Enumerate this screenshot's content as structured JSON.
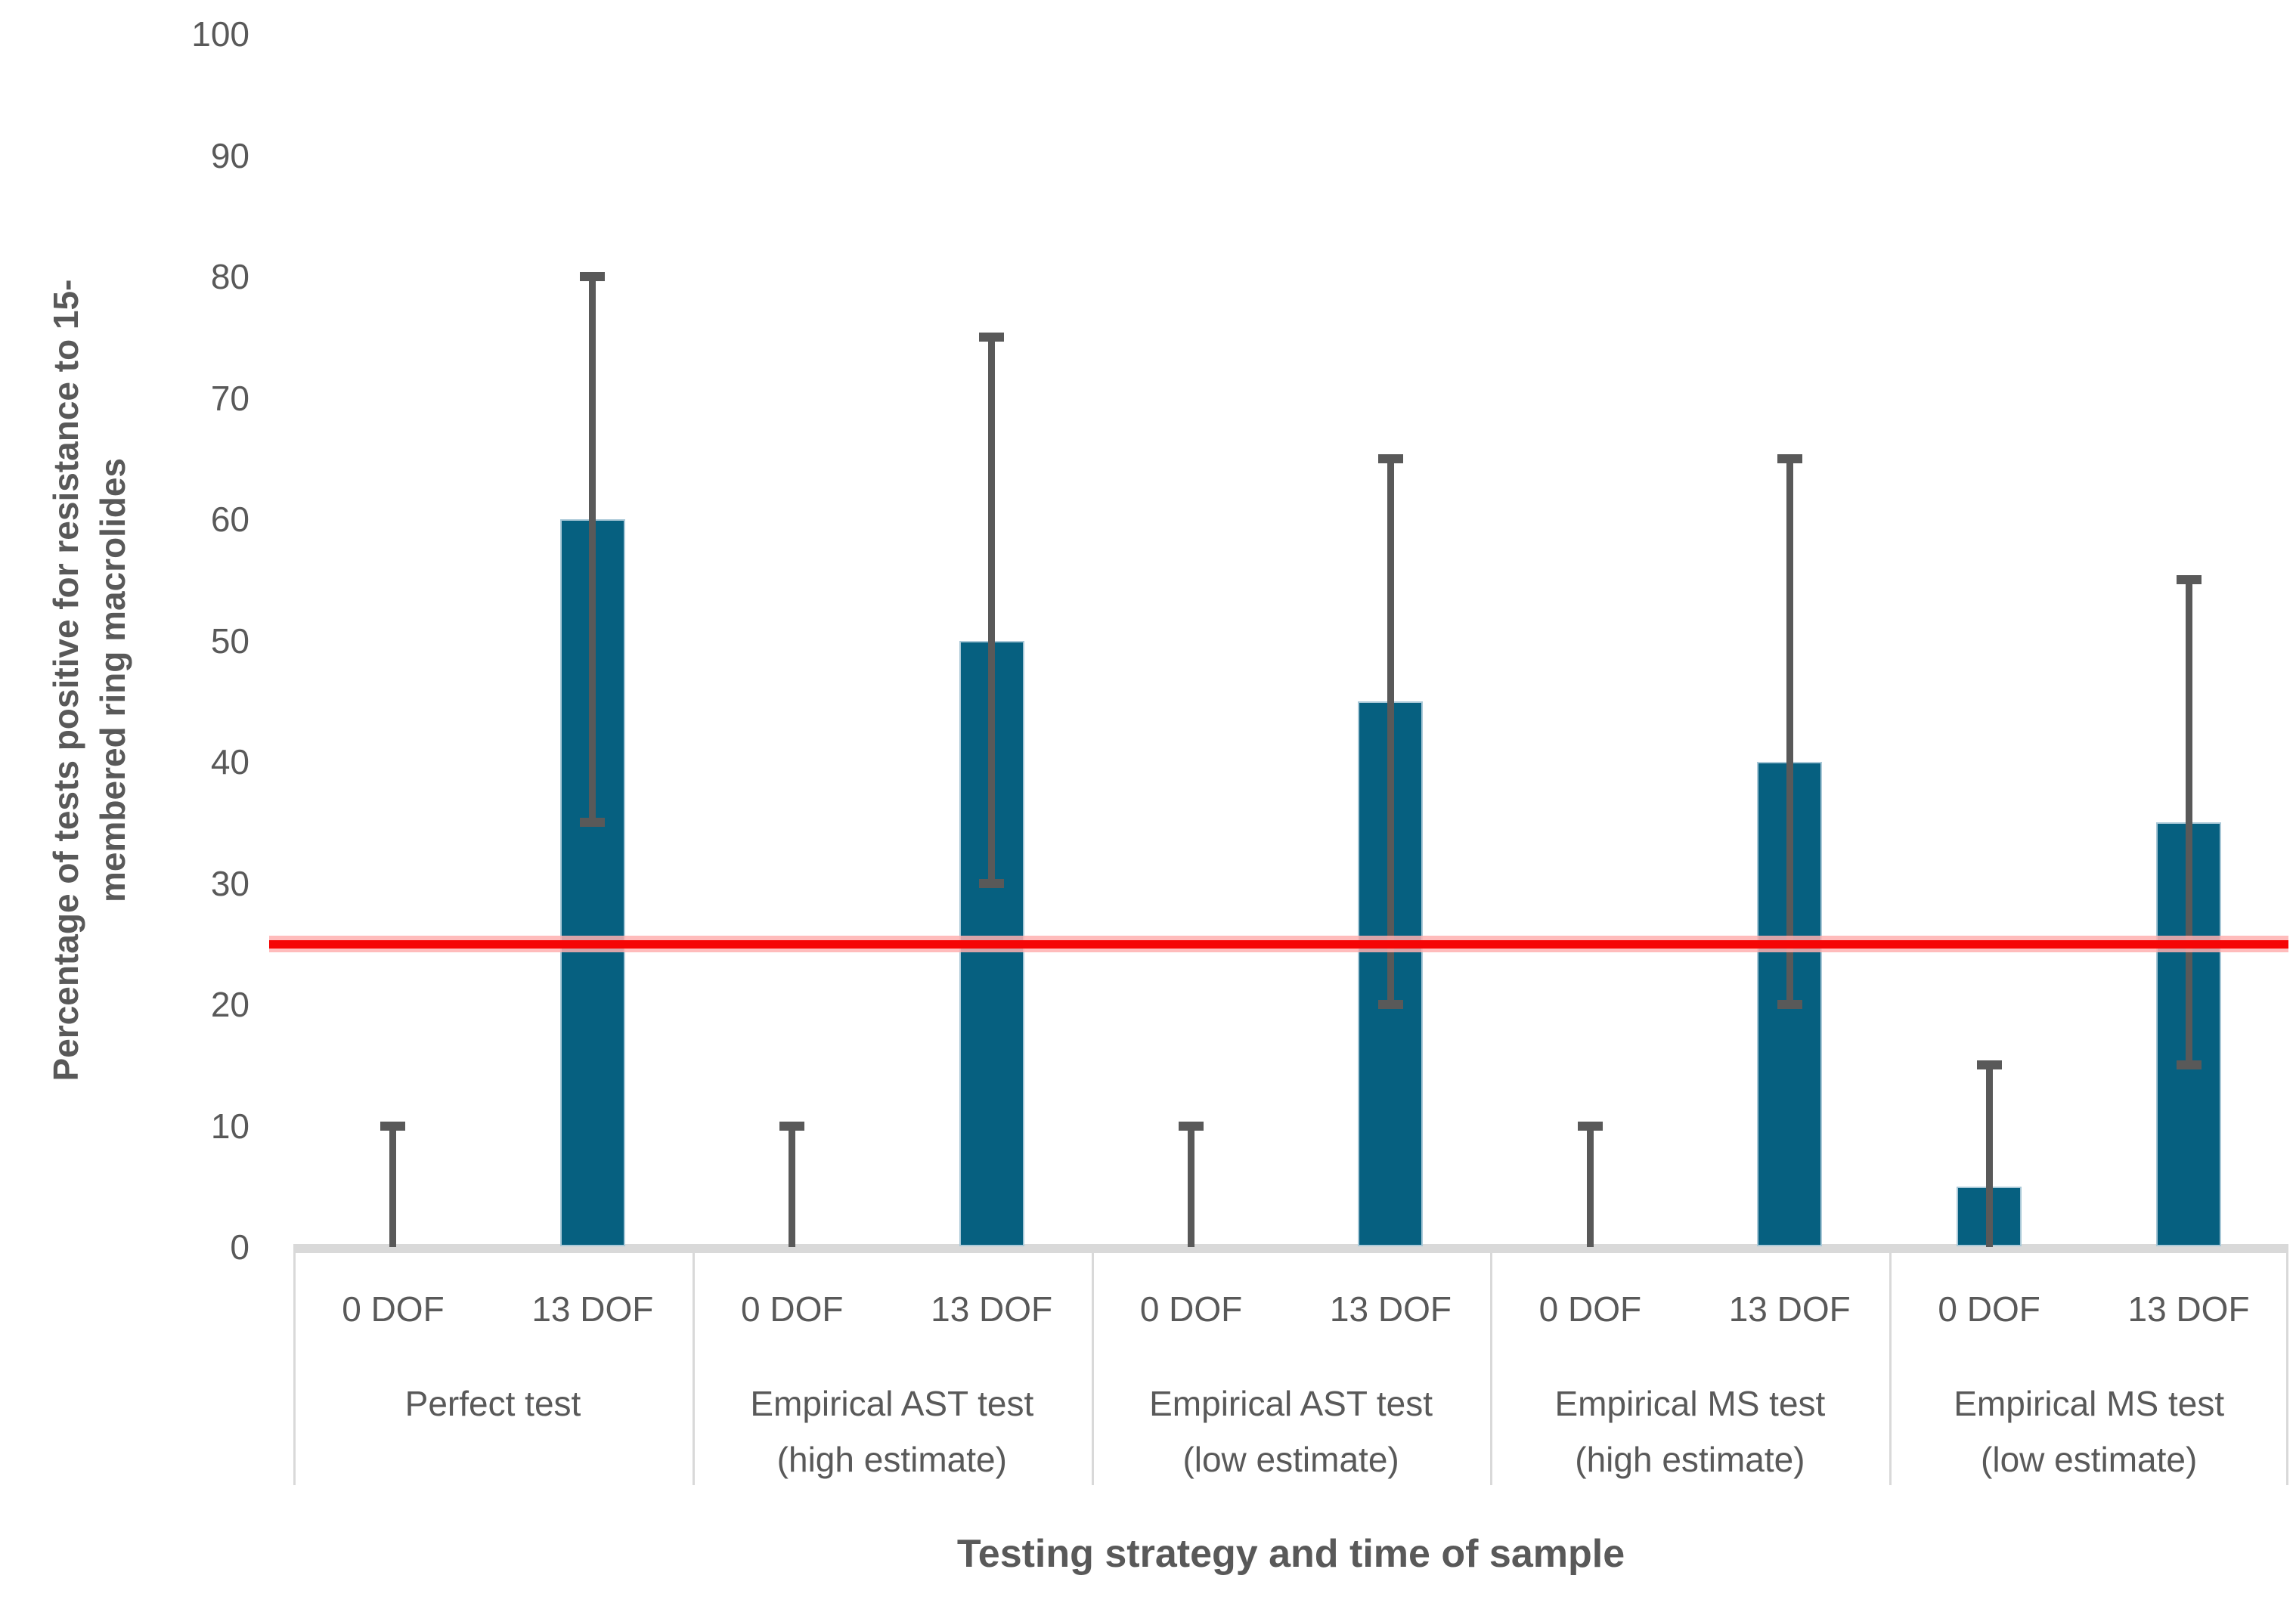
{
  "chart_data": {
    "type": "bar",
    "title": "",
    "xlabel": "Testing strategy and time of sample",
    "ylabel": "Percentage of tests positive for resistance to 15-membered ring macrolides",
    "ylabel_lines": [
      "Percentage of tests positive for resistance to 15-",
      "membered ring macrolides"
    ],
    "ylim": [
      0,
      100
    ],
    "yticks": [
      0,
      10,
      20,
      30,
      40,
      50,
      60,
      70,
      80,
      90,
      100
    ],
    "grid": false,
    "legend": "none",
    "reference_line": {
      "value": 25,
      "color": "#F50505",
      "halo_color": "#FFB0B0"
    },
    "style": {
      "bar_color": "#066080",
      "bar_border_color": "#A9C8D7",
      "error_bar_color": "#595959",
      "axis_line_color": "#D9D9D9",
      "text_color": "#595959"
    },
    "groups": [
      {
        "label_lines": [
          "Perfect test"
        ],
        "bars": [
          {
            "category": "0 DOF",
            "value": 0,
            "error_low": 0,
            "error_high": 10
          },
          {
            "category": "13 DOF",
            "value": 60,
            "error_low": 35,
            "error_high": 80
          }
        ]
      },
      {
        "label_lines": [
          "Empirical AST test",
          "(high estimate)"
        ],
        "bars": [
          {
            "category": "0 DOF",
            "value": 0,
            "error_low": 0,
            "error_high": 10
          },
          {
            "category": "13 DOF",
            "value": 50,
            "error_low": 30,
            "error_high": 75
          }
        ]
      },
      {
        "label_lines": [
          "Empirical AST test",
          "(low estimate)"
        ],
        "bars": [
          {
            "category": "0 DOF",
            "value": 0,
            "error_low": 0,
            "error_high": 10
          },
          {
            "category": "13 DOF",
            "value": 45,
            "error_low": 20,
            "error_high": 65
          }
        ]
      },
      {
        "label_lines": [
          "Empirical MS test",
          "(high estimate)"
        ],
        "bars": [
          {
            "category": "0 DOF",
            "value": 0,
            "error_low": 0,
            "error_high": 10
          },
          {
            "category": "13 DOF",
            "value": 40,
            "error_low": 20,
            "error_high": 65
          }
        ]
      },
      {
        "label_lines": [
          "Empirical MS test",
          "(low estimate)"
        ],
        "bars": [
          {
            "category": "0 DOF",
            "value": 5,
            "error_low": 0,
            "error_high": 15
          },
          {
            "category": "13 DOF",
            "value": 35,
            "error_low": 15,
            "error_high": 55
          }
        ]
      }
    ]
  }
}
